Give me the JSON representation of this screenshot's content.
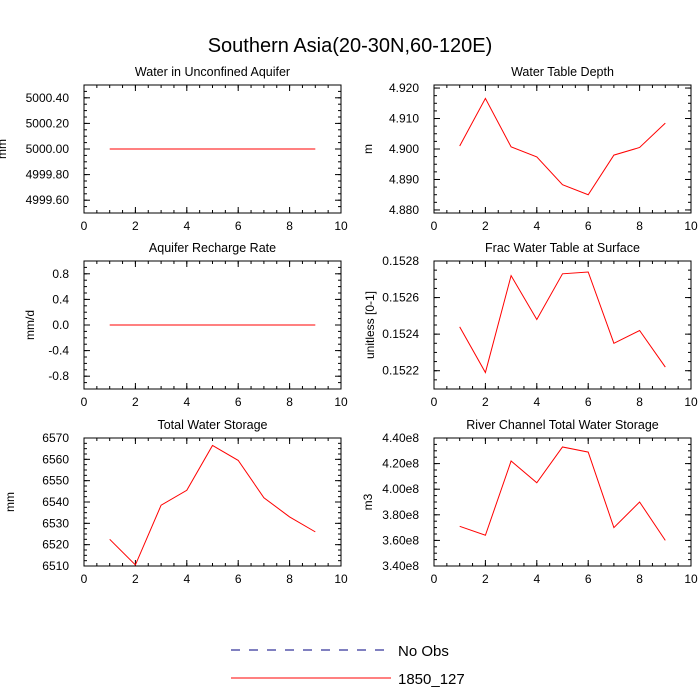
{
  "figure": {
    "title": "Southern Asia(20-30N,60-120E)"
  },
  "legend": {
    "entries": [
      {
        "label": "No Obs",
        "color": "#000080",
        "dash": "dashed"
      },
      {
        "label": "1850_127",
        "color": "#ff0000",
        "dash": "solid"
      }
    ]
  },
  "chart_data": [
    {
      "type": "line",
      "title": "Water in Unconfined Aquifer",
      "xlabel": "",
      "ylabel": "mm",
      "xlim": [
        0,
        10
      ],
      "ylim": [
        4999.5,
        5000.5
      ],
      "xticks": [
        0,
        2,
        4,
        6,
        8,
        10
      ],
      "xtick_labels": [
        "0",
        "2",
        "4",
        "6",
        "8",
        "10"
      ],
      "yticks": [
        4999.6,
        4999.8,
        5000.0,
        5000.2,
        5000.4
      ],
      "ytick_labels": [
        "4999.60",
        "4999.80",
        "5000.00",
        "5000.20",
        "5000.40"
      ],
      "series": [
        {
          "name": "1850_127",
          "x": [
            1,
            2,
            3,
            4,
            5,
            6,
            7,
            8,
            9
          ],
          "y": [
            5000,
            5000,
            5000,
            5000,
            5000,
            5000,
            5000,
            5000,
            5000
          ]
        }
      ]
    },
    {
      "type": "line",
      "title": "Water Table Depth",
      "xlabel": "",
      "ylabel": "m",
      "xlim": [
        0,
        10
      ],
      "ylim": [
        4.879,
        4.921
      ],
      "xticks": [
        0,
        2,
        4,
        6,
        8,
        10
      ],
      "xtick_labels": [
        "0",
        "2",
        "4",
        "6",
        "8",
        "10"
      ],
      "yticks": [
        4.88,
        4.89,
        4.9,
        4.91,
        4.92
      ],
      "ytick_labels": [
        "4.880",
        "4.890",
        "4.900",
        "4.910",
        "4.920"
      ],
      "series": [
        {
          "name": "1850_127",
          "x": [
            1,
            2,
            3,
            4,
            5,
            6,
            7,
            8,
            9
          ],
          "y": [
            4.901,
            4.9166,
            4.9007,
            4.8974,
            4.8883,
            4.885,
            4.898,
            4.9005,
            4.9085
          ]
        }
      ]
    },
    {
      "type": "line",
      "title": "Aquifer Recharge Rate",
      "xlabel": "",
      "ylabel": "mm/d",
      "xlim": [
        0,
        10
      ],
      "ylim": [
        -1,
        1
      ],
      "xticks": [
        0,
        2,
        4,
        6,
        8,
        10
      ],
      "xtick_labels": [
        "0",
        "2",
        "4",
        "6",
        "8",
        "10"
      ],
      "yticks": [
        -0.8,
        -0.4,
        0,
        0.4,
        0.8
      ],
      "ytick_labels": [
        "-0.8",
        "-0.4",
        "0.0",
        "0.4",
        "0.8"
      ],
      "series": [
        {
          "name": "1850_127",
          "x": [
            1,
            2,
            3,
            4,
            5,
            6,
            7,
            8,
            9
          ],
          "y": [
            0,
            0,
            0,
            0,
            0,
            0,
            0,
            0,
            0
          ]
        }
      ]
    },
    {
      "type": "line",
      "title": "Frac Water Table at Surface",
      "xlabel": "",
      "ylabel": "unitless [0-1]",
      "xlim": [
        0,
        10
      ],
      "ylim": [
        0.1521,
        0.1528
      ],
      "xticks": [
        0,
        2,
        4,
        6,
        8,
        10
      ],
      "xtick_labels": [
        "0",
        "2",
        "4",
        "6",
        "8",
        "10"
      ],
      "yticks": [
        0.1522,
        0.1524,
        0.1526,
        0.1528
      ],
      "ytick_labels": [
        "0.1522",
        "0.1524",
        "0.1526",
        "0.1528"
      ],
      "series": [
        {
          "name": "1850_127",
          "x": [
            1,
            2,
            3,
            4,
            5,
            6,
            7,
            8,
            9
          ],
          "y": [
            0.15244,
            0.15219,
            0.15272,
            0.15248,
            0.15273,
            0.15274,
            0.15235,
            0.15242,
            0.15222
          ]
        }
      ]
    },
    {
      "type": "line",
      "title": "Total Water Storage",
      "xlabel": "",
      "ylabel": "mm",
      "xlim": [
        0,
        10
      ],
      "ylim": [
        6510,
        6570
      ],
      "xticks": [
        0,
        2,
        4,
        6,
        8,
        10
      ],
      "xtick_labels": [
        "0",
        "2",
        "4",
        "6",
        "8",
        "10"
      ],
      "yticks": [
        6510,
        6520,
        6530,
        6540,
        6550,
        6560,
        6570
      ],
      "ytick_labels": [
        "6510",
        "6520",
        "6530",
        "6540",
        "6550",
        "6560",
        "6570"
      ],
      "series": [
        {
          "name": "1850_127",
          "x": [
            1,
            2,
            3,
            4,
            5,
            6,
            7,
            8,
            9
          ],
          "y": [
            6522.5,
            6510.5,
            6538.5,
            6545.5,
            6566.5,
            6559.5,
            6542,
            6533,
            6526
          ]
        }
      ]
    },
    {
      "type": "line",
      "title": "River Channel Total Water Storage",
      "xlabel": "",
      "ylabel": "m3",
      "xlim": [
        0,
        10
      ],
      "ylim": [
        340000000,
        440000000
      ],
      "xticks": [
        0,
        2,
        4,
        6,
        8,
        10
      ],
      "xtick_labels": [
        "0",
        "2",
        "4",
        "6",
        "8",
        "10"
      ],
      "yticks": [
        340000000,
        360000000,
        380000000,
        400000000,
        420000000,
        440000000
      ],
      "ytick_labels": [
        "3.40e8",
        "3.60e8",
        "3.80e8",
        "4.00e8",
        "4.20e8",
        "4.40e8"
      ],
      "series": [
        {
          "name": "1850_127",
          "x": [
            1,
            2,
            3,
            4,
            5,
            6,
            7,
            8,
            9
          ],
          "y": [
            371000000,
            364000000,
            422000000,
            405000000,
            433000000,
            429000000,
            370000000,
            390000000,
            360000000
          ]
        }
      ]
    }
  ]
}
